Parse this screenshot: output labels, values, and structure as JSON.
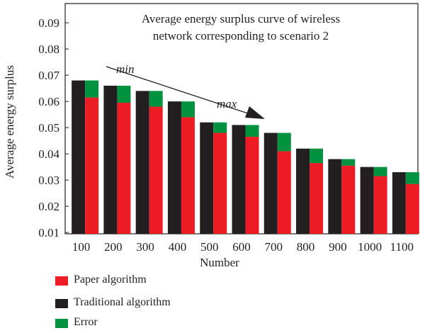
{
  "chart_data": {
    "type": "bar",
    "title": "Average energy surplus curve of wireless network corresponding to scenario 2",
    "title_lines": [
      "Average energy surplus curve of wireless",
      "network corresponding to scenario 2"
    ],
    "xlabel": "Number",
    "ylabel": "Average energy surplus",
    "categories": [
      "100",
      "200",
      "300",
      "400",
      "500",
      "600",
      "700",
      "800",
      "900",
      "1000",
      "1100"
    ],
    "yticks": [
      "0.01",
      "0.02",
      "0.03",
      "0.04",
      "0.05",
      "0.06",
      "0.07",
      "0.08",
      "0.09"
    ],
    "ylim": [
      0.01,
      0.095
    ],
    "series": [
      {
        "name": "Paper algorithm",
        "color": "#ed1c24",
        "values": [
          0.0615,
          0.0595,
          0.058,
          0.054,
          0.048,
          0.0465,
          0.041,
          0.0365,
          0.0355,
          0.0315,
          0.0285
        ]
      },
      {
        "name": "Traditional algorithm",
        "color": "#231f20",
        "values": [
          0.068,
          0.066,
          0.064,
          0.06,
          0.052,
          0.051,
          0.048,
          0.042,
          0.038,
          0.035,
          0.033
        ]
      },
      {
        "name": "Error",
        "color": "#00923f",
        "low": [
          0.0615,
          0.0595,
          0.058,
          0.054,
          0.048,
          0.0465,
          0.041,
          0.0365,
          0.0355,
          0.0315,
          0.0285
        ],
        "high": [
          0.068,
          0.066,
          0.064,
          0.06,
          0.052,
          0.051,
          0.048,
          0.042,
          0.038,
          0.035,
          0.033
        ]
      }
    ],
    "annotations": {
      "arrow_start": "min",
      "arrow_end": "max"
    },
    "grid": false,
    "legend_position": "bottom-left"
  }
}
